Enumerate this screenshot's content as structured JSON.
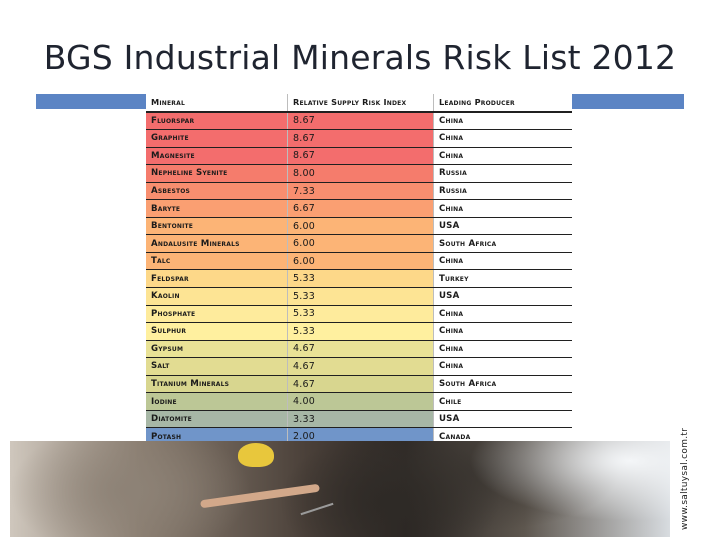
{
  "slide": {
    "title": "BGS Industrial Minerals Risk List 2012",
    "accent_color": "#5b84c4"
  },
  "table": {
    "headers": [
      "Mineral",
      "Relative Supply Risk Index",
      "Leading Producer"
    ],
    "rows": [
      {
        "mineral": "Fluorspar",
        "index": "8.67",
        "producer": "China",
        "color": "#f36d6d"
      },
      {
        "mineral": "Graphite",
        "index": "8.67",
        "producer": "China",
        "color": "#f36d6d"
      },
      {
        "mineral": "Magnesite",
        "index": "8.67",
        "producer": "China",
        "color": "#f36d6d"
      },
      {
        "mineral": "Nepheline Syenite",
        "index": "8.00",
        "producer": "Russia",
        "color": "#f57c6c"
      },
      {
        "mineral": "Asbestos",
        "index": "7.33",
        "producer": "Russia",
        "color": "#f88e6f"
      },
      {
        "mineral": "Baryte",
        "index": "6.67",
        "producer": "China",
        "color": "#fa9f72"
      },
      {
        "mineral": "Bentonite",
        "index": "6.00",
        "producer": "USA",
        "color": "#fcb476"
      },
      {
        "mineral": "Andalusite Minerals",
        "index": "6.00",
        "producer": "South Africa",
        "color": "#fcb476"
      },
      {
        "mineral": "Talc",
        "index": "6.00",
        "producer": "China",
        "color": "#fcb476"
      },
      {
        "mineral": "Feldspar",
        "index": "5.33",
        "producer": "Turkey",
        "color": "#fdd889"
      },
      {
        "mineral": "Kaolin",
        "index": "5.33",
        "producer": "USA",
        "color": "#fde494"
      },
      {
        "mineral": "Phosphate",
        "index": "5.33",
        "producer": "China",
        "color": "#feeb9c"
      },
      {
        "mineral": "Sulphur",
        "index": "5.33",
        "producer": "China",
        "color": "#fff09f"
      },
      {
        "mineral": "Gypsum",
        "index": "4.67",
        "producer": "China",
        "color": "#e9e296"
      },
      {
        "mineral": "Salt",
        "index": "4.67",
        "producer": "China",
        "color": "#e2dc92"
      },
      {
        "mineral": "Titanium Minerals",
        "index": "4.67",
        "producer": "South Africa",
        "color": "#d8d68f"
      },
      {
        "mineral": "Iodine",
        "index": "4.00",
        "producer": "Chile",
        "color": "#bcc796"
      },
      {
        "mineral": "Diatomite",
        "index": "3.33",
        "producer": "USA",
        "color": "#a7b7a6"
      },
      {
        "mineral": "Potash",
        "index": "2.00",
        "producer": "Canada",
        "color": "#7095c9"
      }
    ]
  },
  "footer": {
    "watermark": "www.saltuysal.com.tr"
  }
}
